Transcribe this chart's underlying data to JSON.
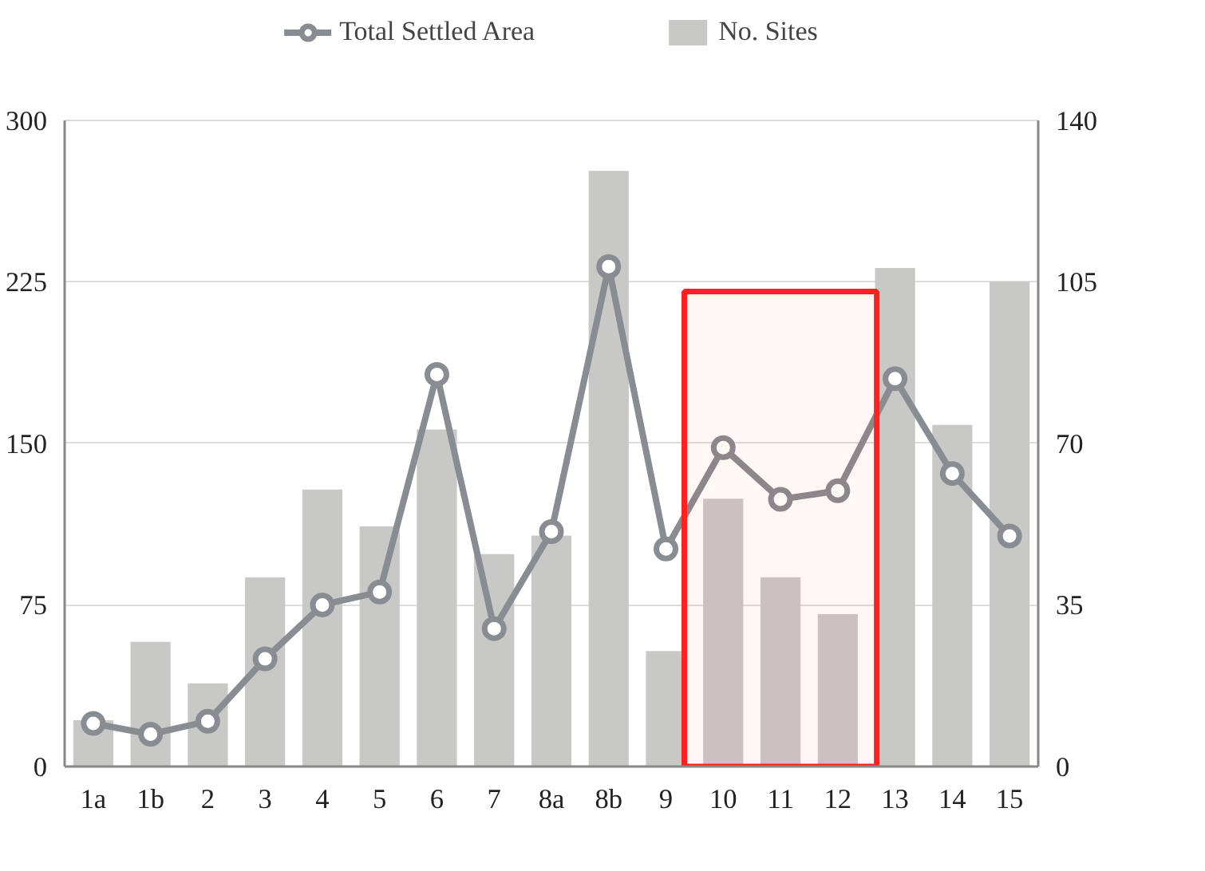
{
  "chart_data": {
    "type": "line",
    "categories": [
      "1a",
      "1b",
      "2",
      "3",
      "4",
      "5",
      "6",
      "7",
      "8a",
      "8b",
      "9",
      "10",
      "11",
      "12",
      "13",
      "14",
      "15"
    ],
    "series": [
      {
        "name": "Total Settled Area",
        "color": "#898c90",
        "marker": "circle",
        "values": [
          20,
          15,
          21,
          50,
          75,
          81,
          182,
          64,
          109,
          232,
          101,
          148,
          124,
          128,
          180,
          136,
          107
        ]
      },
      {
        "name": "No. Sites",
        "type": "bar",
        "axis": "y2",
        "color": "#c8c8c7",
        "values": [
          10,
          27,
          18,
          41,
          60,
          52,
          73,
          46,
          50,
          129,
          25,
          58,
          41,
          33,
          108,
          74,
          105
        ]
      }
    ],
    "ylim": [
      0,
      300
    ],
    "yticks": [
      0,
      75,
      150,
      225,
      300
    ],
    "y2lim": [
      0,
      140
    ],
    "y2ticks": [
      0,
      35,
      70,
      105,
      140
    ],
    "grid": "y",
    "legend": "top",
    "bands": [
      {
        "axis": "x",
        "from": "10",
        "to": "12",
        "color": "#ff2020"
      }
    ]
  }
}
